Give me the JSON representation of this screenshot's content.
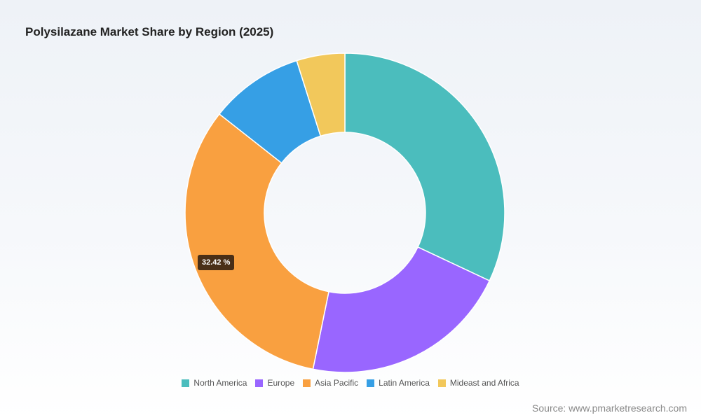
{
  "chart_data": {
    "type": "pie",
    "variant": "donut",
    "title": "Polysilazane Market Share by Region (2025)",
    "categories": [
      "North America",
      "Europe",
      "Asia Pacific",
      "Latin America",
      "Mideast and Africa"
    ],
    "values": [
      32.0,
      21.2,
      32.42,
      9.5,
      4.88
    ],
    "colors": [
      "#4bbdbd",
      "#9966ff",
      "#f9a040",
      "#369fe5",
      "#f2c85b"
    ],
    "legend_position": "bottom",
    "tooltip": {
      "category": "Asia Pacific",
      "label": "32.42 %"
    }
  },
  "source": "Source: www.pmarketresearch.com"
}
